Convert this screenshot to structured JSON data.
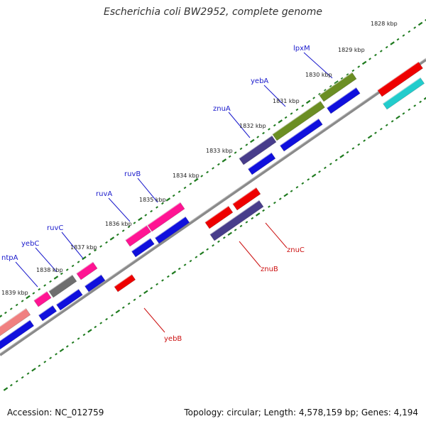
{
  "title": "Escherichia coli BW2952, complete genome",
  "footer": {
    "accession": "Accession: NC_012759",
    "info": "Topology: circular; Length: 4,578,159 bp; Genes: 4,194"
  },
  "colors": {
    "backbone": "#8a8a8a",
    "tick": "#1e7a1e",
    "forward_label": "#1a1acc",
    "reverse_label": "#cc1111",
    "cds_blue": "#1010dd",
    "red": "#ee0000",
    "cyan": "#22cccc",
    "olive": "#6b8e23",
    "slate": "#483d8b",
    "pink": "#ff1493",
    "gray": "#6e6e6e",
    "salmon": "#f08080"
  },
  "tick_labels": [
    "1828 kbp",
    "1829 kbp",
    "1830 kbp",
    "1831 kbp",
    "1832 kbp",
    "1833 kbp",
    "1834 kbp",
    "1835 kbp",
    "1836 kbp",
    "1837 kbp",
    "1838 kbp",
    "1839 kbp"
  ],
  "forward_labels": [
    "lpxM",
    "yebA",
    "znuA",
    "ruvB",
    "ruvA",
    "ruvC",
    "yebC",
    "ntpA"
  ],
  "reverse_labels": [
    "znuC",
    "znuB",
    "yebB"
  ]
}
